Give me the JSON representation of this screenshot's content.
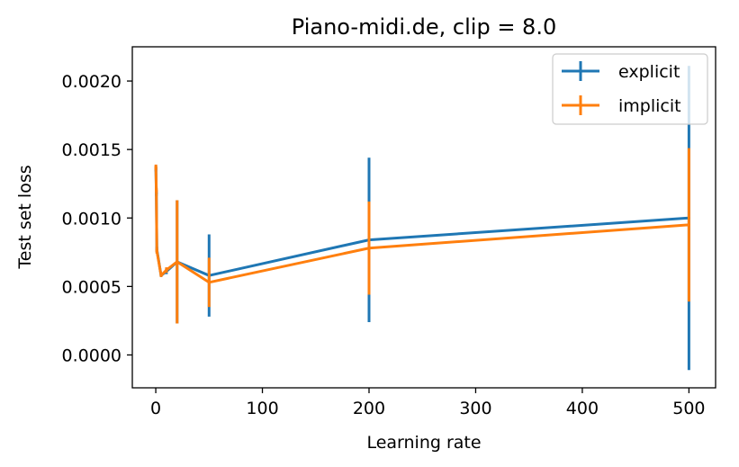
{
  "chart_data": {
    "type": "line",
    "title": "Piano-midi.de, clip = 8.0",
    "xlabel": "Learning rate",
    "ylabel": "Test set loss",
    "xlim": [
      -22,
      525
    ],
    "ylim": [
      -0.00024,
      0.00225
    ],
    "xticks": [
      0,
      100,
      200,
      300,
      400,
      500
    ],
    "yticks": [
      0.0,
      0.0005,
      0.001,
      0.0015,
      0.002
    ],
    "xtick_labels": [
      "0",
      "100",
      "200",
      "300",
      "400",
      "500"
    ],
    "ytick_labels": [
      "0.0000",
      "0.0005",
      "0.0010",
      "0.0015",
      "0.0020"
    ],
    "grid": false,
    "legend_position": "top-right",
    "series": [
      {
        "name": "explicit",
        "color": "#1f77b4",
        "x": [
          0.1,
          0.5,
          1,
          5,
          10,
          20,
          50,
          200,
          500
        ],
        "y": [
          0.00136,
          0.00118,
          0.00077,
          0.00058,
          0.00061,
          0.00068,
          0.00058,
          0.00084,
          0.001
        ],
        "yerr": [
          2e-05,
          2e-05,
          2e-05,
          1e-05,
          2e-05,
          0.00045,
          0.0003,
          0.0006,
          0.00111
        ]
      },
      {
        "name": "implicit",
        "color": "#ff7f0e",
        "x": [
          0.1,
          0.5,
          1,
          5,
          10,
          20,
          50,
          200,
          500
        ],
        "y": [
          0.00137,
          0.0012,
          0.00076,
          0.00058,
          0.00062,
          0.00068,
          0.00053,
          0.00078,
          0.00095
        ],
        "yerr": [
          2e-05,
          2e-05,
          2e-05,
          1e-05,
          2e-05,
          0.00045,
          0.00018,
          0.00034,
          0.00056
        ]
      }
    ]
  }
}
